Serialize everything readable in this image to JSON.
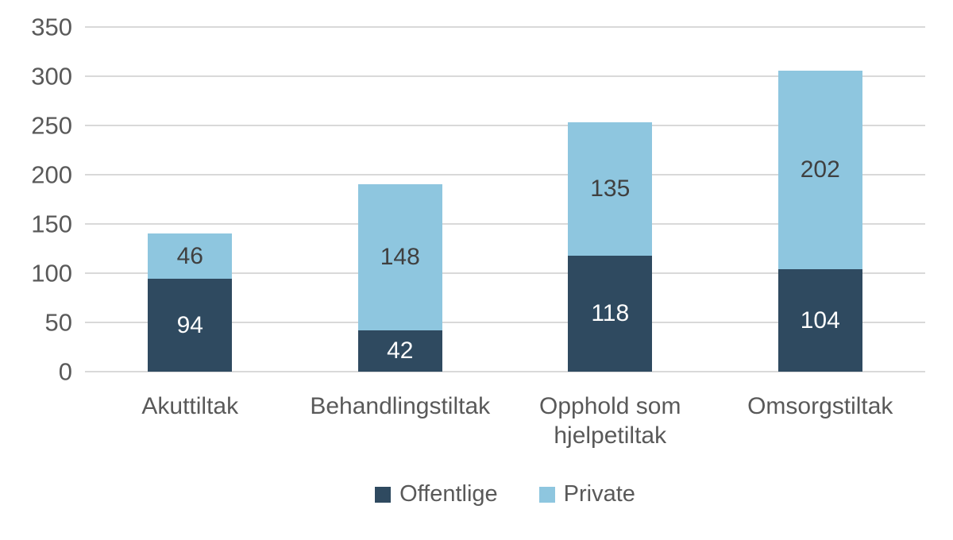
{
  "chart_data": {
    "type": "bar",
    "stacked": true,
    "title": "",
    "xlabel": "",
    "ylabel": "",
    "categories": [
      "Akuttiltak",
      "Behandlingstiltak",
      "Opphold som hjelpetiltak",
      "Omsorgstiltak"
    ],
    "series": [
      {
        "name": "Offentlige",
        "values": [
          94,
          42,
          118,
          104
        ],
        "color": "#2F4A60",
        "label_color": "#FFFFFF"
      },
      {
        "name": "Private",
        "values": [
          46,
          148,
          135,
          202
        ],
        "color": "#8EC6DF",
        "label_color": "#404040"
      }
    ],
    "ylim": [
      0,
      350
    ],
    "y_ticks": [
      0,
      50,
      100,
      150,
      200,
      250,
      300,
      350
    ],
    "grid": true,
    "legend_position": "bottom"
  },
  "style": {
    "axis_text_color": "#595959",
    "gridline_color": "#D9D9D9",
    "background": "#FFFFFF"
  }
}
